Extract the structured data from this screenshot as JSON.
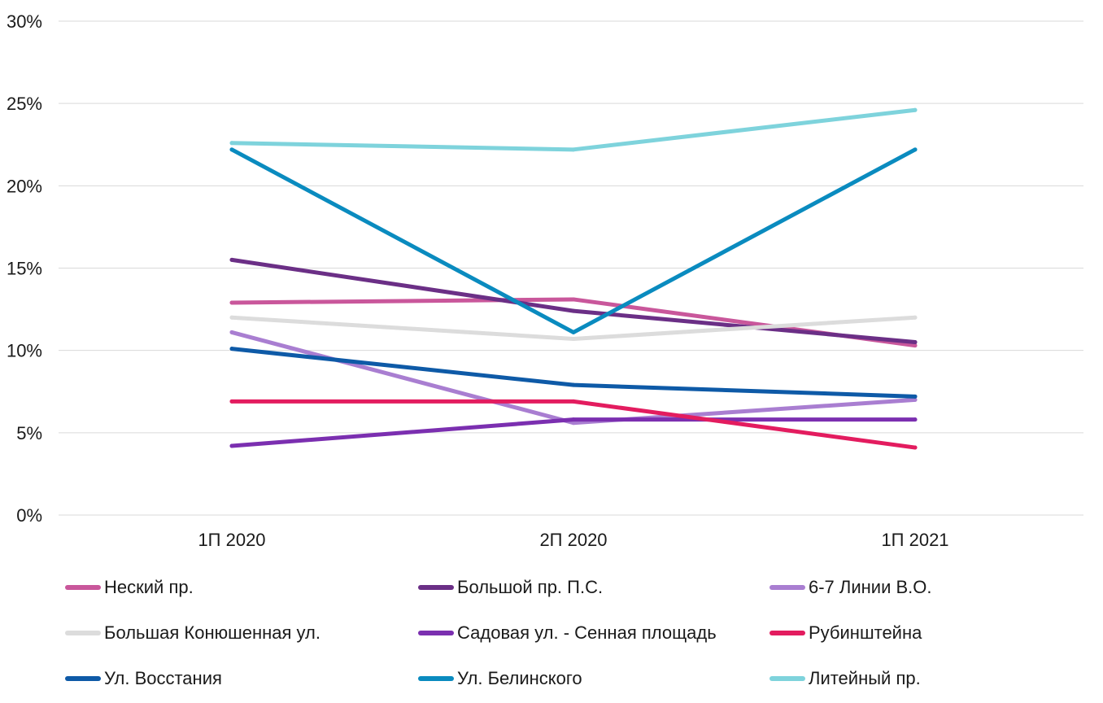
{
  "chart_data": {
    "type": "line",
    "categories": [
      "1П 2020",
      "2П 2020",
      "1П 2021"
    ],
    "ylim": [
      0,
      30
    ],
    "yticks": [
      "0%",
      "5%",
      "10%",
      "15%",
      "20%",
      "25%",
      "30%"
    ],
    "grid": true,
    "legend_position": "bottom",
    "series": [
      {
        "name": "Неский пр.",
        "color": "#c9579b",
        "values": [
          12.9,
          13.1,
          10.3
        ]
      },
      {
        "name": "Большой пр. П.С.",
        "color": "#6b2f86",
        "values": [
          15.5,
          12.4,
          10.5
        ]
      },
      {
        "name": "6-7 Линии В.О.",
        "color": "#a97ed1",
        "values": [
          11.1,
          5.6,
          7.0
        ]
      },
      {
        "name": "Большая Конюшенная ул.",
        "color": "#dcdcdc",
        "values": [
          12.0,
          10.7,
          12.0
        ]
      },
      {
        "name": "Садовая ул. - Сенная площадь",
        "color": "#7b2fb0",
        "values": [
          4.2,
          5.8,
          5.8
        ]
      },
      {
        "name": "Рубинштейна",
        "color": "#e31c5f",
        "values": [
          6.9,
          6.9,
          4.1
        ]
      },
      {
        "name": "Ул. Восстания",
        "color": "#0e5aa7",
        "values": [
          10.1,
          7.9,
          7.2
        ]
      },
      {
        "name": "Ул. Белинского",
        "color": "#0a8bbf",
        "values": [
          22.2,
          11.1,
          22.2
        ]
      },
      {
        "name": "Литейный пр.",
        "color": "#7ed3dc",
        "values": [
          22.6,
          22.2,
          24.6
        ]
      }
    ]
  }
}
